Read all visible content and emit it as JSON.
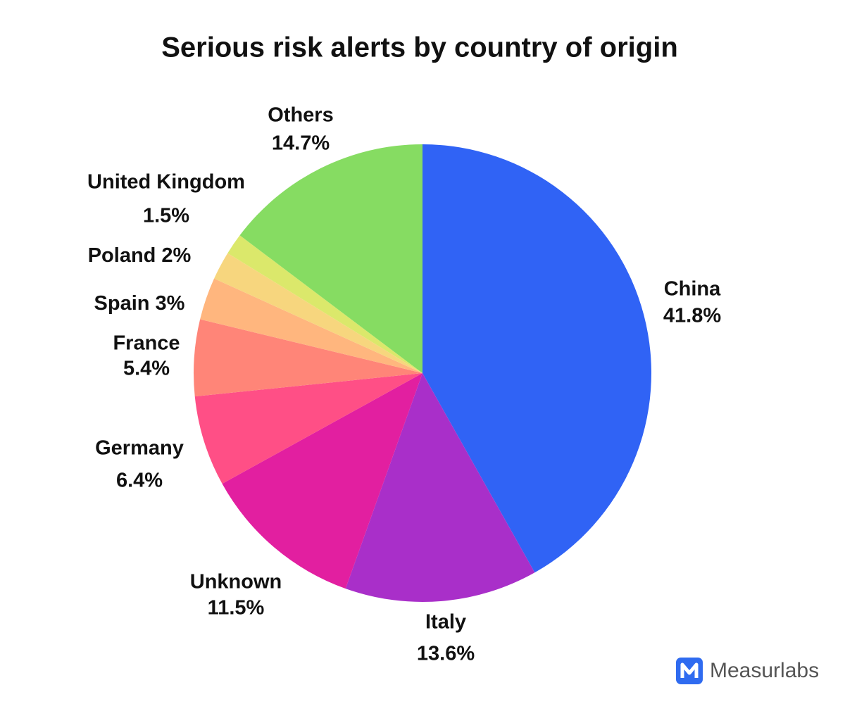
{
  "chart_data": {
    "type": "pie",
    "title": "Serious risk alerts by country of origin",
    "categories": [
      "China",
      "Italy",
      "Unknown",
      "Germany",
      "France",
      "Spain",
      "Poland",
      "United Kingdom",
      "Others"
    ],
    "values": [
      41.8,
      13.6,
      11.5,
      6.4,
      5.4,
      3,
      2,
      1.5,
      14.7
    ],
    "value_labels": [
      "41.8%",
      "13.6%",
      "11.5%",
      "6.4%",
      "5.4%",
      "3%",
      "2%",
      "1.5%",
      "14.7%"
    ],
    "colors": [
      "#3063f5",
      "#a92fc9",
      "#e21fa0",
      "#ff4f86",
      "#ff8578",
      "#ffb67e",
      "#f7d67e",
      "#dbe86b",
      "#86dc62"
    ],
    "source": "Measurlabs"
  }
}
